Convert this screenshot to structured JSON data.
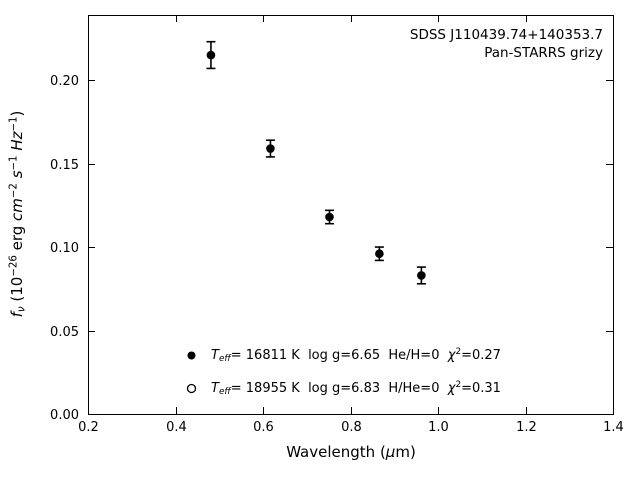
{
  "figure": {
    "background": "#ffffff",
    "foreground": "#000000"
  },
  "chart_data": {
    "type": "scatter",
    "title": "",
    "annotations": [
      "SDSS J110439.74+140353.7",
      "Pan-STARRS grizy"
    ],
    "xlabel": "Wavelength (μm)",
    "xlabel_html": "Wavelength (<i>μ</i>m)",
    "ylabel": "fν (10⁻²⁶ erg cm⁻² s⁻¹ Hz⁻¹)",
    "ylabel_html": "<i>f</i><sub><i>ν</i></sub> (10<sup>−26</sup> erg <i>cm</i><sup>−2</sup> <i>s</i><sup>−1</sup> <i>Hz</i><sup>−1</sup>)",
    "xlim": [
      0.2,
      1.4
    ],
    "ylim": [
      0.0,
      0.239
    ],
    "x_ticks": [
      0.2,
      0.4,
      0.6,
      0.8,
      1.0,
      1.2,
      1.4
    ],
    "x_tick_labels": [
      "0.2",
      "0.4",
      "0.6",
      "0.8",
      "1.0",
      "1.2",
      "1.4"
    ],
    "y_ticks": [
      0.0,
      0.05,
      0.1,
      0.15,
      0.2
    ],
    "y_tick_labels": [
      "0.00",
      "0.05",
      "0.10",
      "0.15",
      "0.20"
    ],
    "grid": false,
    "tick_direction": "in",
    "ticks_on_all_spines": true,
    "series": [
      {
        "name": "Pan-STARRS grizy photometry",
        "marker": "filled-circle",
        "color": "#000000",
        "x": [
          0.481,
          0.617,
          0.752,
          0.866,
          0.962
        ],
        "y": [
          0.215,
          0.159,
          0.118,
          0.096,
          0.083
        ],
        "yerr": [
          0.008,
          0.005,
          0.004,
          0.004,
          0.005
        ]
      }
    ],
    "legend": {
      "position": "lower center-left, frameless",
      "entries": [
        {
          "marker": "filled-circle",
          "label": "Teff= 16811 K  log g=6.65  He/H=0  χ²=0.27",
          "label_html": "<i>T</i><sub><i>eff</i></sub>= 16811 K&nbsp; log g=6.65&nbsp; He/H=0&nbsp; <i>χ</i><sup>2</sup>=0.27"
        },
        {
          "marker": "open-circle",
          "label": "Teff= 18955 K  log g=6.83  H/He=0  χ²=0.31",
          "label_html": "<i>T</i><sub><i>eff</i></sub>= 18955 K&nbsp; log g=6.83&nbsp; H/He=0&nbsp; <i>χ</i><sup>2</sup>=0.31"
        }
      ]
    }
  }
}
